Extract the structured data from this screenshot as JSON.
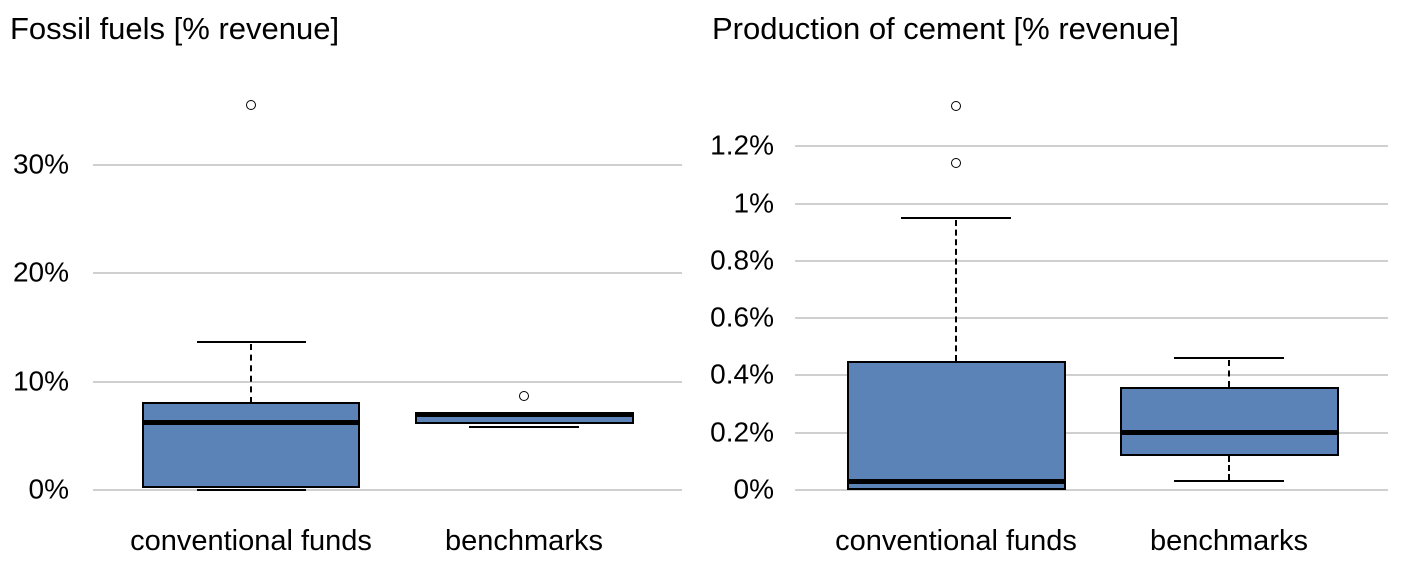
{
  "figure": {
    "background": "#ffffff",
    "text_color": "#000000"
  },
  "colors": {
    "box_fill": "#5b83b8",
    "box_border": "#000000",
    "median_line": "#000000",
    "gridline": "#d0d0d0",
    "outlier_stroke": "#000000",
    "outlier_fill": "#ffffff"
  },
  "chart_data": [
    {
      "type": "boxplot",
      "title": "Fossil fuels [% revenue]",
      "unit": "%",
      "grid": true,
      "legend": false,
      "ylim": [
        0,
        37
      ],
      "y_ticks": [
        {
          "value": 0,
          "label": "0%"
        },
        {
          "value": 10,
          "label": "10%"
        },
        {
          "value": 20,
          "label": "20%"
        },
        {
          "value": 30,
          "label": "30%"
        }
      ],
      "categories": [
        "conventional funds",
        "benchmarks"
      ],
      "series": [
        {
          "category": "conventional funds",
          "min": 0,
          "q1": 0.2,
          "median": 6.2,
          "q3": 8.1,
          "max": 13.7,
          "outliers": [
            35.5
          ]
        },
        {
          "category": "benchmarks",
          "min": 5.8,
          "q1": 6.1,
          "median": 7.0,
          "q3": 7.2,
          "max": 7.2,
          "outliers": [
            8.7
          ]
        }
      ]
    },
    {
      "type": "boxplot",
      "title": "Production of cement [% revenue]",
      "unit": "%",
      "grid": true,
      "legend": false,
      "ylim": [
        0,
        1.4
      ],
      "y_ticks": [
        {
          "value": 0,
          "label": "0%"
        },
        {
          "value": 0.2,
          "label": "0.2%"
        },
        {
          "value": 0.4,
          "label": "0.4%"
        },
        {
          "value": 0.6,
          "label": "0.6%"
        },
        {
          "value": 0.8,
          "label": "0.8%"
        },
        {
          "value": 1.0,
          "label": "1%"
        },
        {
          "value": 1.2,
          "label": "1.2%"
        }
      ],
      "categories": [
        "conventional funds",
        "benchmarks"
      ],
      "series": [
        {
          "category": "conventional funds",
          "min": 0,
          "q1": 0,
          "median": 0.03,
          "q3": 0.45,
          "max": 0.95,
          "outliers": [
            1.14,
            1.34
          ]
        },
        {
          "category": "benchmarks",
          "min": 0.03,
          "q1": 0.12,
          "median": 0.2,
          "q3": 0.36,
          "max": 0.46,
          "outliers": []
        }
      ]
    }
  ]
}
